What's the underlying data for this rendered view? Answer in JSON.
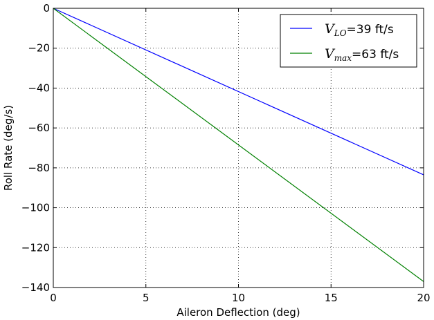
{
  "chart_data": {
    "type": "line",
    "title": "",
    "xlabel": "Aileron Deflection (deg)",
    "ylabel": "Roll Rate (deg/s)",
    "xlim": [
      0,
      20
    ],
    "ylim": [
      -140,
      0
    ],
    "xticks": [
      0,
      5,
      10,
      15,
      20
    ],
    "yticks": [
      0,
      -20,
      -40,
      -60,
      -80,
      -100,
      -120,
      -140
    ],
    "xtick_labels": [
      "0",
      "5",
      "10",
      "15",
      "20"
    ],
    "ytick_labels": [
      "0",
      "−20",
      "−40",
      "−60",
      "−80",
      "−100",
      "−120",
      "−140"
    ],
    "grid": true,
    "legend_position": "top-right",
    "series": [
      {
        "name": "V_LO=39 ft/s",
        "legend": {
          "symbol": "V",
          "subscript": "LO",
          "rest": "=39 ft/s"
        },
        "color": "#0000ff",
        "x": [
          0,
          20
        ],
        "y": [
          0,
          -83.5
        ]
      },
      {
        "name": "V_max=63 ft/s",
        "legend": {
          "symbol": "V",
          "subscript": "max",
          "rest": "=63 ft/s"
        },
        "color": "#008000",
        "x": [
          0,
          20
        ],
        "y": [
          0,
          -137
        ]
      }
    ]
  }
}
